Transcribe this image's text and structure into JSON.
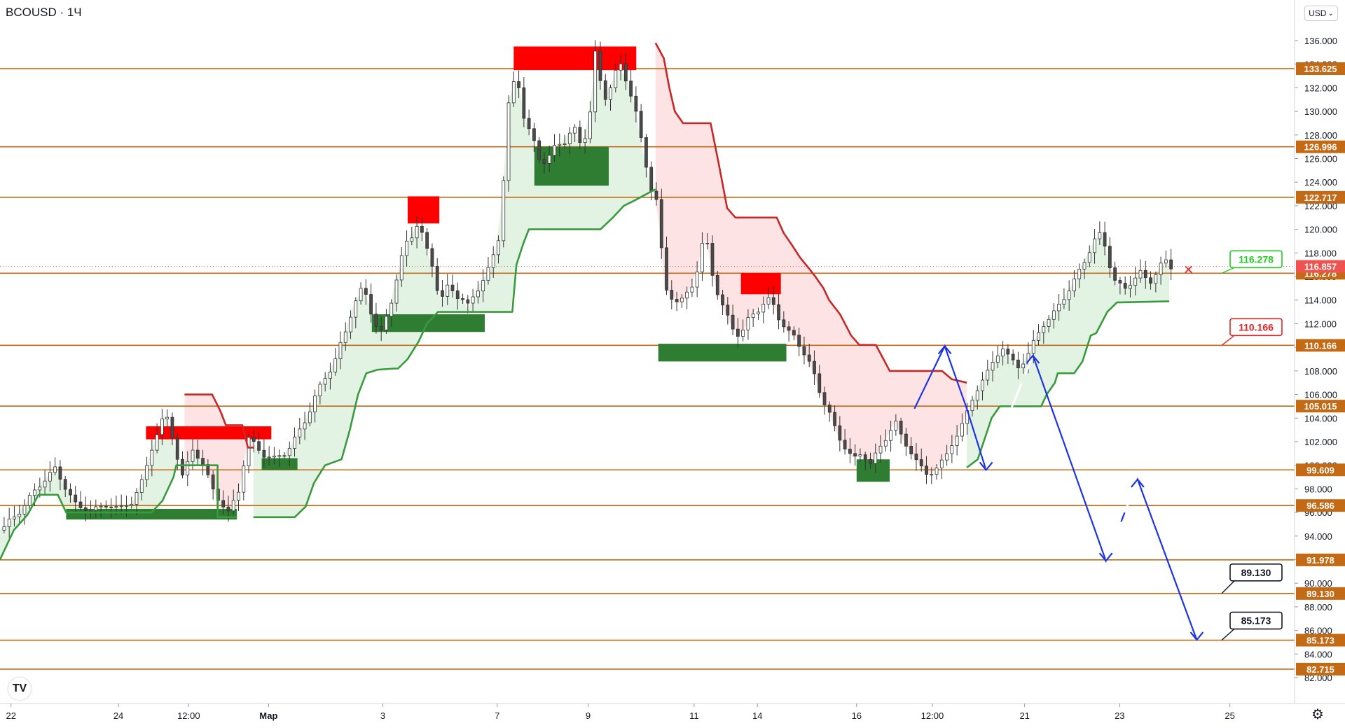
{
  "header": {
    "symbol": "BCOUSD",
    "interval": "1Ч",
    "title": "BCOUSD · 1Ч"
  },
  "toolbar": {
    "currency_label": "USD",
    "currency_icon": "chevron-down-icon",
    "settings_icon": "gear-icon"
  },
  "colors": {
    "level_line": "#c46a14",
    "level_label_bg": "#c46a14",
    "supertrend_up": "#3a9a3e",
    "supertrend_down": "#c62828",
    "fill_up": "#e3f3e3",
    "fill_down": "#fde3e3",
    "zone_red": "#ff0000",
    "zone_green": "#2e7d32",
    "projection": "#1a33e8",
    "last_price_bg": "#ef5350",
    "green_callout": "#22cc22",
    "red_callout": "#e52222",
    "black_callout": "#131722"
  },
  "chart_data": {
    "type": "candlestick",
    "title": "BCOUSD · 1Ч",
    "xlabel": "",
    "ylabel": "USD",
    "ylim": [
      81,
      137
    ],
    "grid": false,
    "y_ticks": [
      82,
      84,
      86,
      88,
      90,
      92,
      94,
      96,
      98,
      100,
      102,
      104,
      106,
      108,
      110,
      112,
      114,
      116,
      118,
      120,
      122,
      124,
      126,
      128,
      130,
      132,
      134,
      136
    ],
    "y_tick_labels": [
      "82.000",
      "84.000",
      "86.000",
      "88.000",
      "90.000",
      "92.000",
      "94.000",
      "96.000",
      "98.000",
      "100.000",
      "102.000",
      "104.000",
      "106.000",
      "108.000",
      "110.000",
      "112.000",
      "114.000",
      "116.000",
      "118.000",
      "120.000",
      "122.000",
      "124.000",
      "126.000",
      "128.000",
      "130.000",
      "132.000",
      "134.000",
      "136.000"
    ],
    "x_ticks": [
      {
        "label": "22",
        "t": 0.8
      },
      {
        "label": "24",
        "t": 8.6
      },
      {
        "label": "12:00",
        "t": 13.7
      },
      {
        "label": "Мар",
        "t": 19.5
      },
      {
        "label": "3",
        "t": 27.8
      },
      {
        "label": "7",
        "t": 36.1
      },
      {
        "label": "9",
        "t": 42.7
      },
      {
        "label": "11",
        "t": 50.4
      },
      {
        "label": "14",
        "t": 55.0
      },
      {
        "label": "16",
        "t": 62.2
      },
      {
        "label": "12:00",
        "t": 67.7
      },
      {
        "label": "21",
        "t": 74.4
      },
      {
        "label": "23",
        "t": 81.3
      },
      {
        "label": "25",
        "t": 89.3
      }
    ],
    "x_range": [
      0,
      94
    ],
    "levels": [
      133.625,
      126.996,
      122.717,
      116.278,
      110.166,
      105.015,
      99.609,
      96.586,
      91.978,
      89.13,
      85.173,
      82.715
    ],
    "level_labels": [
      "133.625",
      "126.996",
      "122.717",
      "116.278",
      "110.166",
      "105.015",
      "99.609",
      "96.586",
      "91.978",
      "89.130",
      "85.173",
      "82.715"
    ],
    "last_price": 116.857,
    "last_price_label": "116.857",
    "price_path": [
      [
        0,
        94.5
      ],
      [
        1,
        95.5
      ],
      [
        2,
        97
      ],
      [
        3,
        98.5
      ],
      [
        4,
        99.7
      ],
      [
        4.8,
        98
      ],
      [
        5.6,
        96.5
      ],
      [
        6.6,
        96.2
      ],
      [
        7.6,
        96.6
      ],
      [
        8.6,
        96.4
      ],
      [
        9.6,
        96.8
      ],
      [
        10.4,
        99
      ],
      [
        11.2,
        102
      ],
      [
        12,
        104.6
      ],
      [
        12.6,
        102
      ],
      [
        13.2,
        99
      ],
      [
        14,
        101.3
      ],
      [
        14.8,
        100
      ],
      [
        15.6,
        97.5
      ],
      [
        16.6,
        96
      ],
      [
        17.4,
        98
      ],
      [
        18,
        102.4
      ],
      [
        19,
        101
      ],
      [
        20,
        100.5
      ],
      [
        20.8,
        101.2
      ],
      [
        21.6,
        102.5
      ],
      [
        22.6,
        105
      ],
      [
        23.6,
        107.5
      ],
      [
        24.4,
        109
      ],
      [
        25,
        111
      ],
      [
        25.6,
        113.5
      ],
      [
        26.4,
        115
      ],
      [
        27,
        113
      ],
      [
        27.6,
        110.8
      ],
      [
        28.2,
        113
      ],
      [
        28.8,
        116
      ],
      [
        29.4,
        118.4
      ],
      [
        30,
        119.8
      ],
      [
        30.4,
        121
      ],
      [
        30.8,
        118.5
      ],
      [
        31.4,
        117
      ],
      [
        32,
        114
      ],
      [
        32.6,
        115
      ],
      [
        33.4,
        114.5
      ],
      [
        34,
        113.2
      ],
      [
        34.8,
        115.5
      ],
      [
        35.6,
        116.5
      ],
      [
        36.2,
        119.5
      ],
      [
        36.6,
        125
      ],
      [
        37,
        131.5
      ],
      [
        37.6,
        132.8
      ],
      [
        38,
        130
      ],
      [
        38.6,
        127.5
      ],
      [
        39.2,
        126
      ],
      [
        40,
        126.2
      ],
      [
        40.8,
        127.5
      ],
      [
        41.6,
        128.5
      ],
      [
        42.2,
        127
      ],
      [
        42.8,
        129.5
      ],
      [
        43.2,
        134.8
      ],
      [
        43.8,
        131
      ],
      [
        44.4,
        132.5
      ],
      [
        45,
        133.8
      ],
      [
        45.6,
        132.5
      ],
      [
        46,
        131
      ],
      [
        46.6,
        127
      ],
      [
        47.2,
        124
      ],
      [
        47.8,
        122
      ],
      [
        48.2,
        115
      ],
      [
        48.8,
        114.5
      ],
      [
        49.4,
        113.5
      ],
      [
        50,
        114.8
      ],
      [
        50.6,
        116.5
      ],
      [
        51.2,
        119.5
      ],
      [
        51.8,
        116
      ],
      [
        52.4,
        113.5
      ],
      [
        53,
        112
      ],
      [
        53.8,
        111
      ],
      [
        54.6,
        112.8
      ],
      [
        55.2,
        113.5
      ],
      [
        56,
        114
      ],
      [
        56.6,
        112.5
      ],
      [
        57.2,
        111.2
      ],
      [
        57.8,
        110.8
      ],
      [
        58.4,
        109.5
      ],
      [
        59,
        108
      ],
      [
        59.6,
        106
      ],
      [
        60.2,
        104.5
      ],
      [
        60.8,
        102.5
      ],
      [
        61.4,
        101.5
      ],
      [
        62,
        100.5
      ],
      [
        62.6,
        101
      ],
      [
        63.2,
        100.2
      ],
      [
        63.8,
        101.3
      ],
      [
        64.4,
        102.4
      ],
      [
        65,
        103.8
      ],
      [
        65.6,
        102
      ],
      [
        66.2,
        101
      ],
      [
        66.8,
        100
      ],
      [
        67.4,
        99
      ],
      [
        68,
        99.8
      ],
      [
        68.8,
        101
      ],
      [
        69.6,
        102.8
      ],
      [
        70.4,
        105
      ],
      [
        71.2,
        107
      ],
      [
        72,
        108.5
      ],
      [
        72.8,
        110
      ],
      [
        73.4,
        109
      ],
      [
        74,
        108.2
      ],
      [
        74.6,
        109.3
      ],
      [
        75.2,
        110.8
      ],
      [
        75.8,
        112
      ],
      [
        76.6,
        113
      ],
      [
        77.4,
        114.5
      ],
      [
        78.2,
        116
      ],
      [
        78.8,
        117.5
      ],
      [
        79.4,
        119
      ],
      [
        80,
        119.6
      ],
      [
        80.6,
        117
      ],
      [
        81,
        115.5
      ],
      [
        81.6,
        114.8
      ],
      [
        82.2,
        115.8
      ],
      [
        82.8,
        116.2
      ],
      [
        83.4,
        115.5
      ],
      [
        84,
        116.5
      ],
      [
        84.6,
        117.2
      ],
      [
        85.2,
        116.8
      ]
    ],
    "supertrend": [
      {
        "trend": "up",
        "points": [
          [
            0,
            92
          ],
          [
            1,
            94.5
          ],
          [
            2,
            95.8
          ],
          [
            2.8,
            97.5
          ],
          [
            4.2,
            97.5
          ],
          [
            4.8,
            96
          ],
          [
            11,
            96
          ],
          [
            11.8,
            97
          ],
          [
            12.6,
            99
          ],
          [
            12.8,
            100
          ],
          [
            13.6,
            100
          ],
          [
            15.8,
            100
          ],
          [
            15.8,
            95.6
          ],
          [
            17.2,
            95.6
          ]
        ]
      },
      {
        "trend": "down",
        "points": [
          [
            13.4,
            106
          ],
          [
            15.4,
            106
          ],
          [
            16,
            104.6
          ],
          [
            16.4,
            103.4
          ],
          [
            17.6,
            103.4
          ],
          [
            18,
            101.5
          ],
          [
            18.4,
            101.5
          ]
        ]
      },
      {
        "trend": "up",
        "points": [
          [
            18.4,
            95.6
          ],
          [
            21.4,
            95.6
          ],
          [
            22.2,
            96.5
          ],
          [
            22.8,
            98.5
          ],
          [
            23.6,
            100
          ],
          [
            24.8,
            100.5
          ],
          [
            25.4,
            103
          ],
          [
            26,
            106
          ],
          [
            26.6,
            107.8
          ],
          [
            27.4,
            108.1
          ],
          [
            28.6,
            108.2
          ],
          [
            28.9,
            108.2
          ],
          [
            29.6,
            109
          ],
          [
            30.4,
            110.5
          ],
          [
            31,
            112
          ],
          [
            31.8,
            113
          ],
          [
            37.2,
            113
          ],
          [
            37.5,
            117
          ],
          [
            38,
            118.8
          ],
          [
            38.4,
            120
          ],
          [
            43.6,
            120
          ],
          [
            44.5,
            121
          ],
          [
            45.3,
            122
          ],
          [
            46,
            122.4
          ],
          [
            47.6,
            123.4
          ]
        ]
      },
      {
        "trend": "down",
        "points": [
          [
            47.6,
            135.8
          ],
          [
            48.2,
            134.5
          ],
          [
            48.6,
            132
          ],
          [
            49,
            130
          ],
          [
            49.6,
            129
          ],
          [
            51.6,
            129
          ],
          [
            52.2,
            125.5
          ],
          [
            52.8,
            121.8
          ],
          [
            53.4,
            121
          ],
          [
            56.4,
            121
          ],
          [
            56.9,
            119.7
          ],
          [
            57.6,
            118.5
          ],
          [
            58.1,
            117.6
          ],
          [
            58.8,
            116.6
          ],
          [
            59.2,
            116
          ],
          [
            59.8,
            115
          ],
          [
            60.2,
            114
          ],
          [
            61,
            112.8
          ],
          [
            61.8,
            111
          ],
          [
            62.4,
            110.2
          ],
          [
            63.6,
            110.2
          ],
          [
            64.2,
            108.9
          ],
          [
            64.6,
            108
          ],
          [
            68.4,
            108
          ],
          [
            69.1,
            107.3
          ],
          [
            70.2,
            107
          ]
        ]
      },
      {
        "trend": "up",
        "points": [
          [
            70.2,
            99.8
          ],
          [
            71,
            100.5
          ],
          [
            72,
            104
          ],
          [
            72.6,
            105
          ],
          [
            75.6,
            105
          ],
          [
            76,
            106
          ],
          [
            76.6,
            107
          ],
          [
            76.8,
            107.8
          ],
          [
            78,
            107.8
          ],
          [
            78.6,
            108.8
          ],
          [
            79.2,
            111
          ],
          [
            79.6,
            111.2
          ],
          [
            80.4,
            113
          ],
          [
            81.1,
            113.8
          ],
          [
            84.9,
            113.9
          ]
        ]
      }
    ],
    "zones": [
      {
        "color": "red",
        "t0": 10.6,
        "t1": 19.7,
        "p_top": 103.3,
        "p_bot": 102.2
      },
      {
        "color": "red",
        "t0": 29.6,
        "t1": 31.9,
        "p_top": 122.8,
        "p_bot": 120.5
      },
      {
        "color": "red",
        "t0": 37.3,
        "t1": 46.2,
        "p_top": 135.5,
        "p_bot": 133.5
      },
      {
        "color": "red",
        "t0": 53.8,
        "t1": 56.7,
        "p_top": 116.3,
        "p_bot": 114.5
      },
      {
        "color": "green",
        "t0": 4.8,
        "t1": 17.2,
        "p_top": 96.3,
        "p_bot": 95.4
      },
      {
        "color": "green",
        "t0": 19.0,
        "t1": 21.6,
        "p_top": 100.6,
        "p_bot": 99.6
      },
      {
        "color": "green",
        "t0": 27.0,
        "t1": 35.2,
        "p_top": 112.8,
        "p_bot": 111.3
      },
      {
        "color": "green",
        "t0": 38.8,
        "t1": 44.2,
        "p_top": 127.0,
        "p_bot": 123.7
      },
      {
        "color": "green",
        "t0": 47.8,
        "t1": 57.1,
        "p_top": 110.3,
        "p_bot": 108.8
      },
      {
        "color": "green",
        "t0": 62.2,
        "t1": 64.6,
        "p_top": 100.5,
        "p_bot": 98.6
      }
    ],
    "projection": [
      {
        "style": "solid",
        "points": [
          [
            66.4,
            104.8
          ],
          [
            68.6,
            110.1
          ],
          [
            70.2,
            104.8
          ],
          [
            71.6,
            99.6
          ]
        ]
      },
      {
        "style": "dashed",
        "points": [
          [
            71.6,
            99.6
          ],
          [
            75.0,
            109.3
          ]
        ]
      },
      {
        "style": "solid",
        "points": [
          [
            75.0,
            109.3
          ],
          [
            80.3,
            91.9
          ],
          [
            82.6,
            98.8
          ],
          [
            86.9,
            85.2
          ]
        ]
      },
      {
        "style": "dashed",
        "points": [
          [
            80.3,
            91.9
          ],
          [
            82.6,
            98.8
          ]
        ]
      }
    ],
    "callouts": [
      {
        "label": "116.278",
        "kind": "green",
        "price": 116.278,
        "t": 87.0
      },
      {
        "label": "110.166",
        "kind": "red",
        "price": 110.166,
        "t": 87.0
      },
      {
        "label": "89.130",
        "kind": "black",
        "price": 89.13,
        "t": 87.0
      },
      {
        "label": "85.173",
        "kind": "black",
        "price": 85.173,
        "t": 87.0
      }
    ],
    "close_marker": {
      "symbol": "✕",
      "price": 116.5,
      "t": 86.3
    }
  }
}
